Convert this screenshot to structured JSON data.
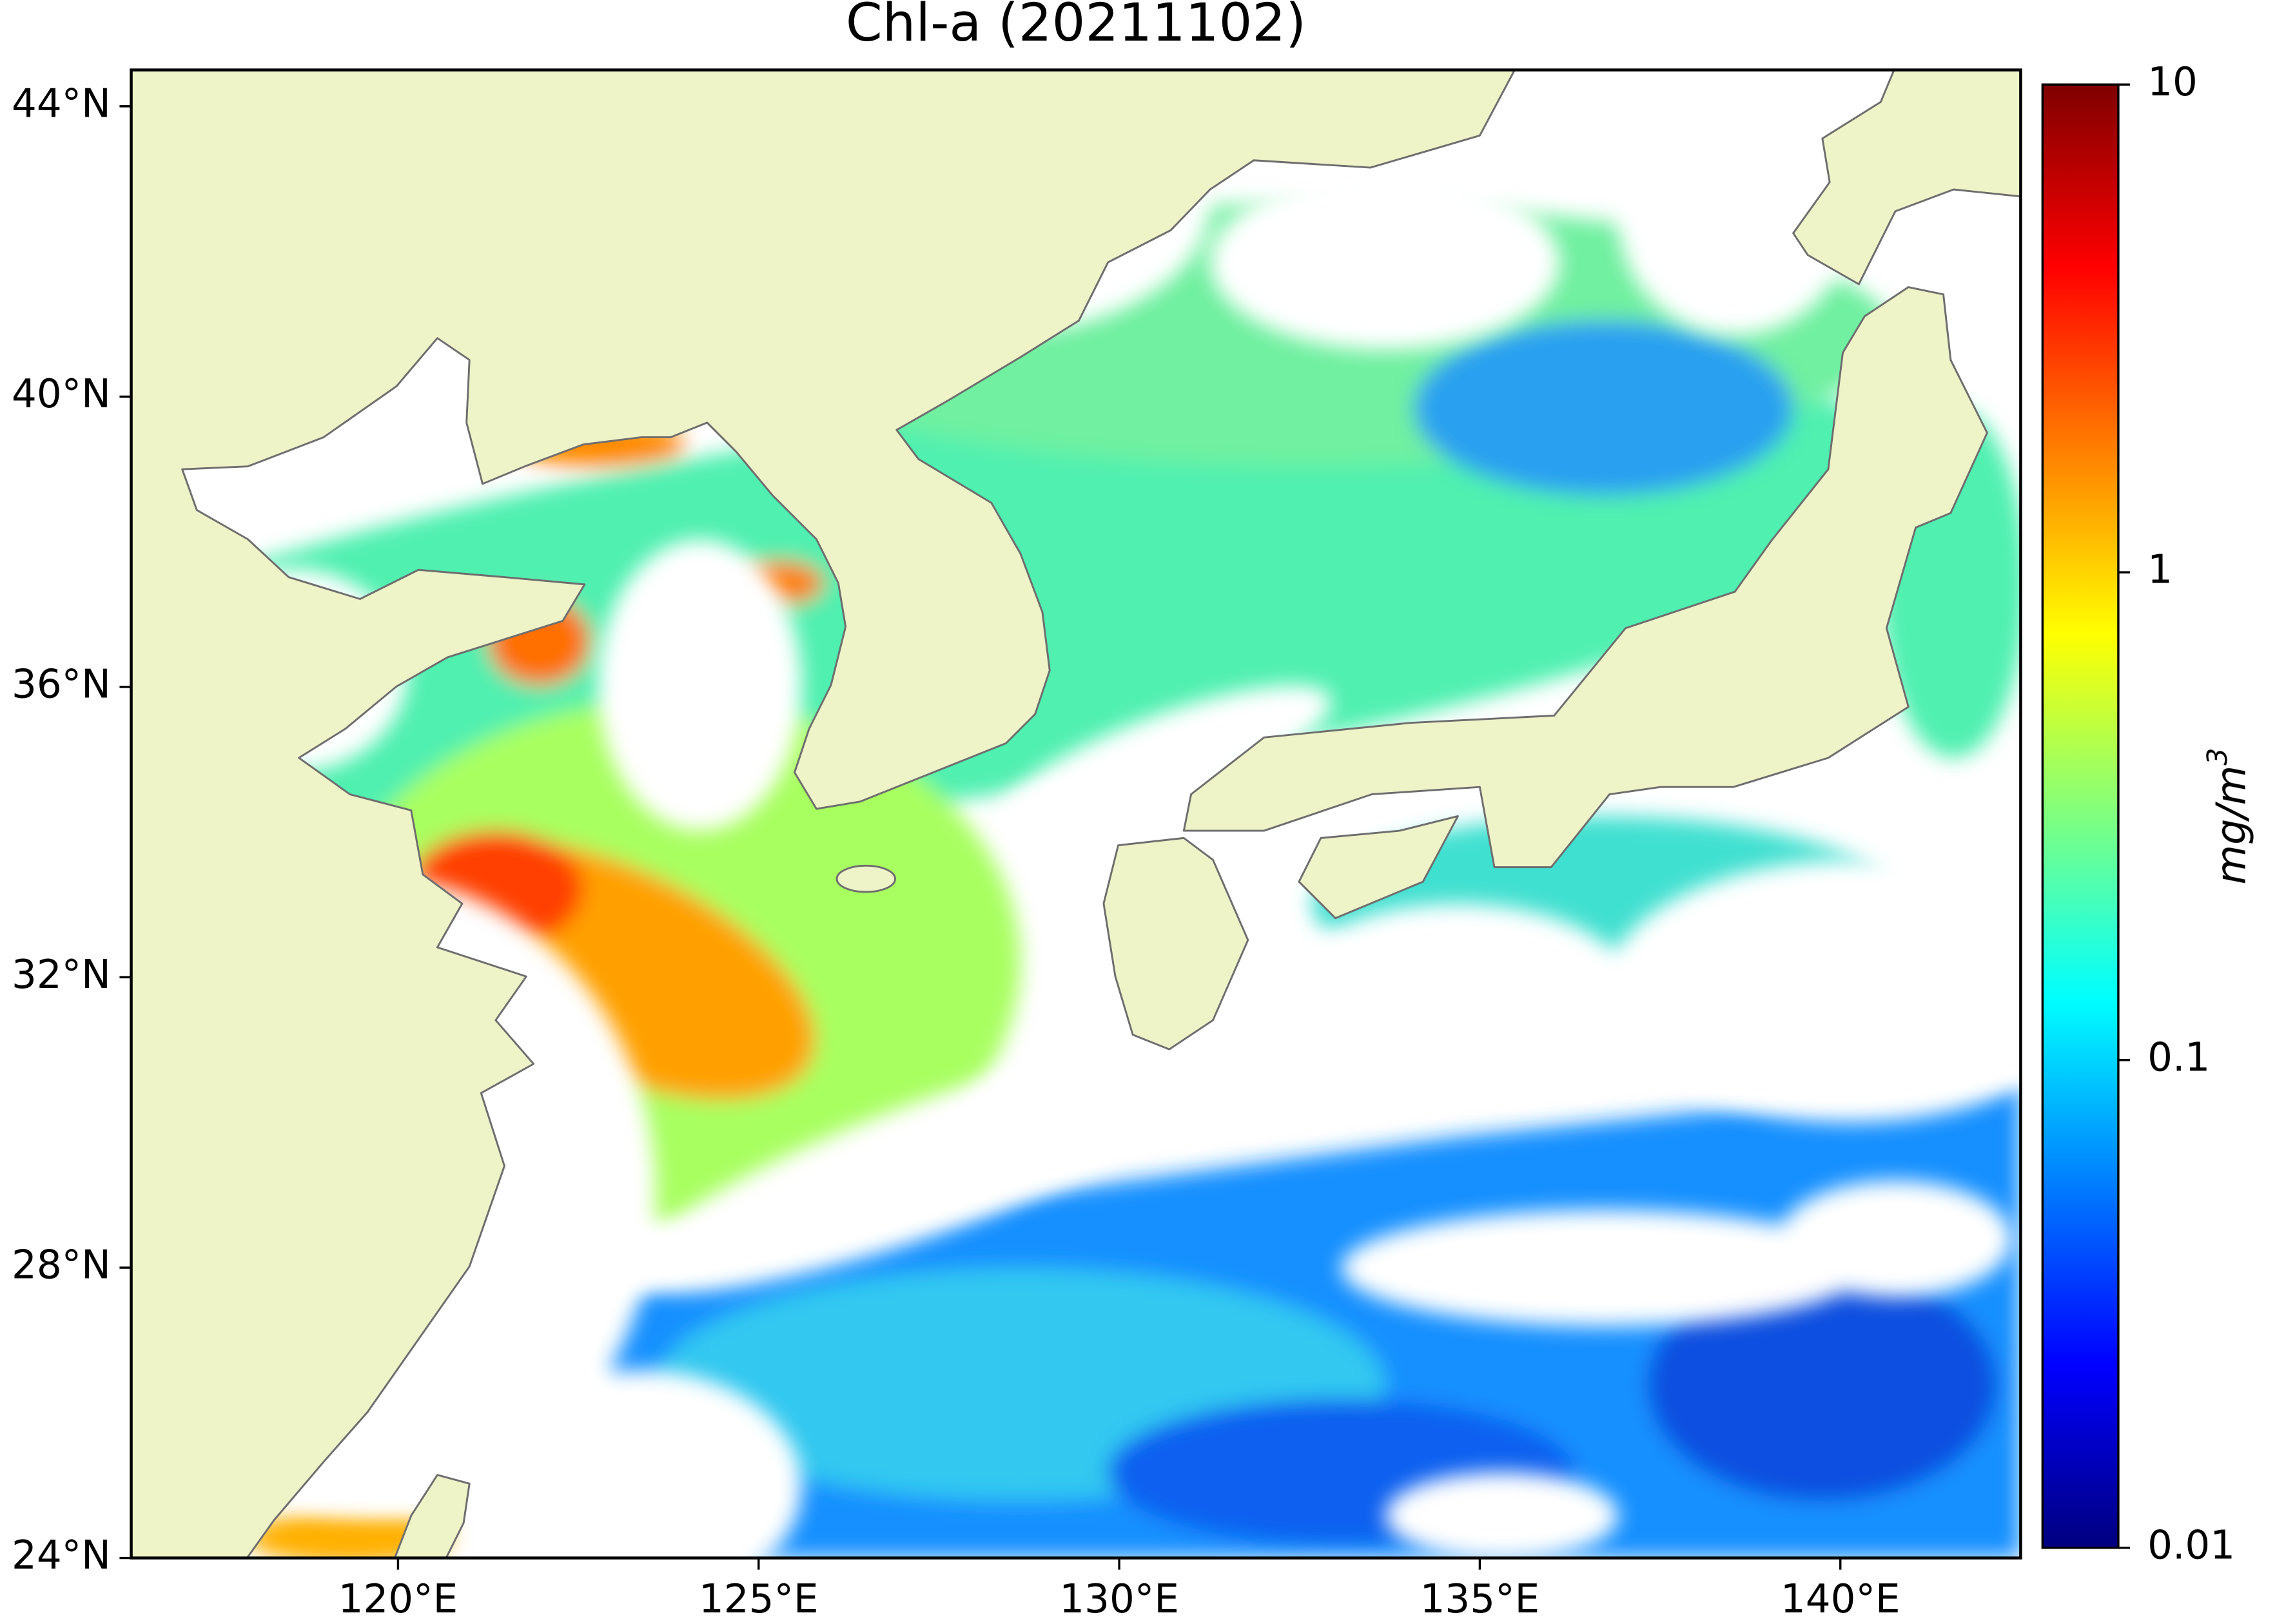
{
  "map": {
    "title": "Chl-a (20211102)",
    "xlim": [
      116.3,
      142.5
    ],
    "ylim": [
      24,
      44.5
    ],
    "xticks": [
      {
        "value": 120,
        "label": "120°E"
      },
      {
        "value": 125,
        "label": "125°E"
      },
      {
        "value": 130,
        "label": "130°E"
      },
      {
        "value": 135,
        "label": "135°E"
      },
      {
        "value": 140,
        "label": "140°E"
      }
    ],
    "yticks": [
      {
        "value": 24,
        "label": "24°N"
      },
      {
        "value": 28,
        "label": "28°N"
      },
      {
        "value": 32,
        "label": "32°N"
      },
      {
        "value": 36,
        "label": "36°N"
      },
      {
        "value": 40,
        "label": "40°N"
      },
      {
        "value": 44,
        "label": "44°N"
      }
    ],
    "land_color": "#eff3c8",
    "coast_color": "#6e6e6e",
    "colorbar": {
      "scale": "log",
      "lim": [
        0.01,
        10
      ],
      "ticks": [
        0.01,
        0.1,
        1,
        10
      ],
      "label": "mg/m",
      "label_sup": "3",
      "colormap": [
        "#00007f",
        "#0000ff",
        "#007fff",
        "#00ffff",
        "#7fff7f",
        "#ffff00",
        "#ff7f00",
        "#ff0000",
        "#7f0000"
      ]
    }
  }
}
